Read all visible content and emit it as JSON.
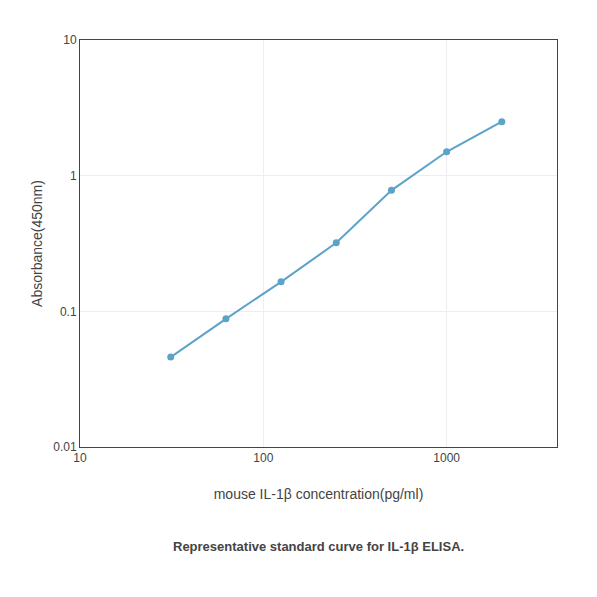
{
  "chart_data": {
    "type": "line",
    "caption": "Representative standard curve for IL-1β ELISA.",
    "x_label": "mouse IL-1β concentration(pg/ml)",
    "y_label": "Absorbance(450nm)",
    "x": [
      31.25,
      62.5,
      125,
      250,
      500,
      1000,
      2000
    ],
    "values": [
      0.046,
      0.088,
      0.165,
      0.32,
      0.78,
      1.5,
      2.5
    ],
    "color": "#5ba3c9",
    "marker": "circle",
    "log": true,
    "xlim": [
      10,
      4000
    ],
    "ylim": [
      0.01,
      10
    ],
    "xticks": [
      10,
      100,
      1000
    ],
    "yticks": [
      0.01,
      0.1,
      1,
      10
    ],
    "grid": true
  }
}
